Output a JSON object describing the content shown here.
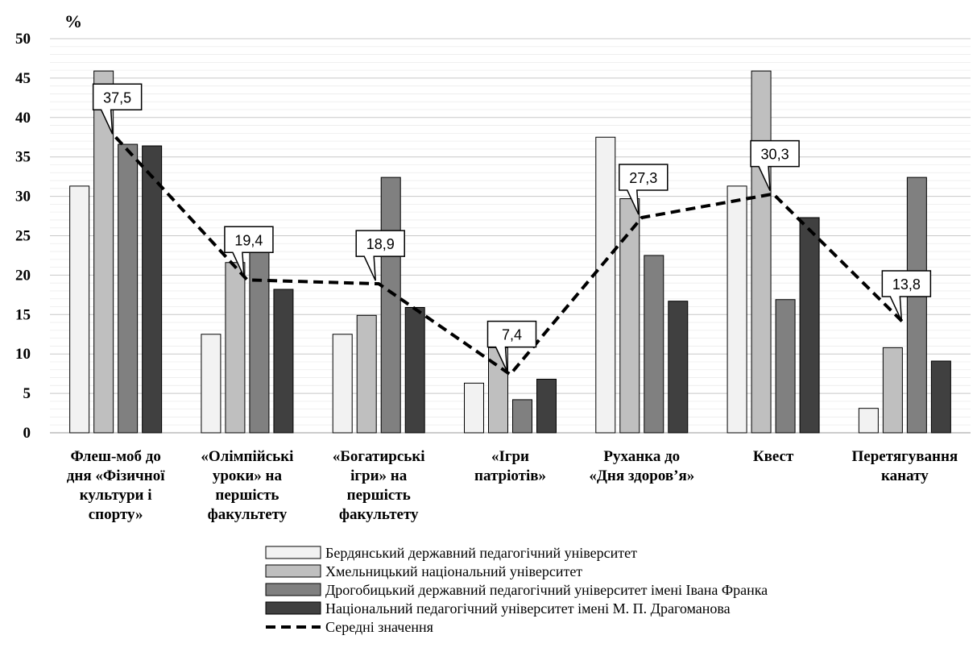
{
  "chart_data": {
    "type": "bar",
    "ylabel": "%",
    "ylim": [
      0,
      50
    ],
    "yticks": [
      0,
      5,
      10,
      15,
      20,
      25,
      30,
      35,
      40,
      45,
      50
    ],
    "grid": true,
    "legend_position": "bottom",
    "categories": [
      [
        "Флеш-моб до",
        "дня «Фізичної",
        "культури і",
        "спорту»"
      ],
      [
        "«Олімпійські",
        "уроки» на",
        "першість",
        "факультету"
      ],
      [
        "«Богатирські",
        "ігри» на",
        "першість",
        "факультету"
      ],
      [
        "«Ігри",
        "патріотів»"
      ],
      [
        "Руханка до",
        "«Дня здоров’я»"
      ],
      [
        "Квест"
      ],
      [
        "Перетягування",
        "канату"
      ]
    ],
    "series": [
      {
        "name": "Бердянський державний педагогічний університет",
        "color": "#f2f2f2",
        "values": [
          31.3,
          12.5,
          12.5,
          6.3,
          37.5,
          31.3,
          3.1
        ]
      },
      {
        "name": "Хмельницький національний університет",
        "color": "#bfbfbf",
        "values": [
          45.9,
          21.6,
          14.9,
          10.8,
          29.7,
          45.9,
          10.8
        ]
      },
      {
        "name": "Дрогобицький державний педагогічний університет імені Івана Франка",
        "color": "#808080",
        "values": [
          36.6,
          25.4,
          32.4,
          4.2,
          22.5,
          16.9,
          32.4
        ]
      },
      {
        "name": "Національний педагогічний університет імені М. П. Драгоманова",
        "color": "#404040",
        "values": [
          36.4,
          18.2,
          15.9,
          6.8,
          16.7,
          27.3,
          9.1
        ]
      }
    ],
    "average": {
      "name": "Середні значення",
      "values": [
        37.5,
        19.4,
        18.9,
        7.4,
        27.3,
        30.3,
        13.8
      ],
      "labels": [
        "37,5",
        "19,4",
        "18,9",
        "7,4",
        "27,3",
        "30,3",
        "13,8"
      ]
    }
  }
}
